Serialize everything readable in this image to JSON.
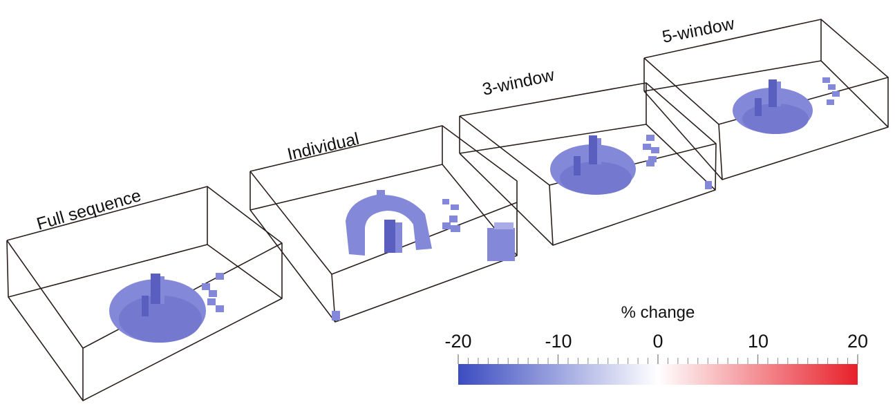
{
  "panels": [
    {
      "id": "full",
      "label": "Full sequence"
    },
    {
      "id": "individual",
      "label": "Individual"
    },
    {
      "id": "window3",
      "label": "3-window"
    },
    {
      "id": "window5",
      "label": "5-window"
    }
  ],
  "colorbar": {
    "title": "% change",
    "min": -20,
    "max": 20,
    "tick_labels": [
      "-20",
      "-10",
      "0",
      "10",
      "20"
    ],
    "colors": {
      "low": "#3b4cc0",
      "mid": "#ffffff",
      "high": "#e8202a"
    }
  },
  "colors": {
    "voxel_fill": "#8488d8",
    "voxel_dark": "#5a5fbf",
    "voxel_light": "#a9ace6",
    "box_edge": "#2a1f1c"
  }
}
